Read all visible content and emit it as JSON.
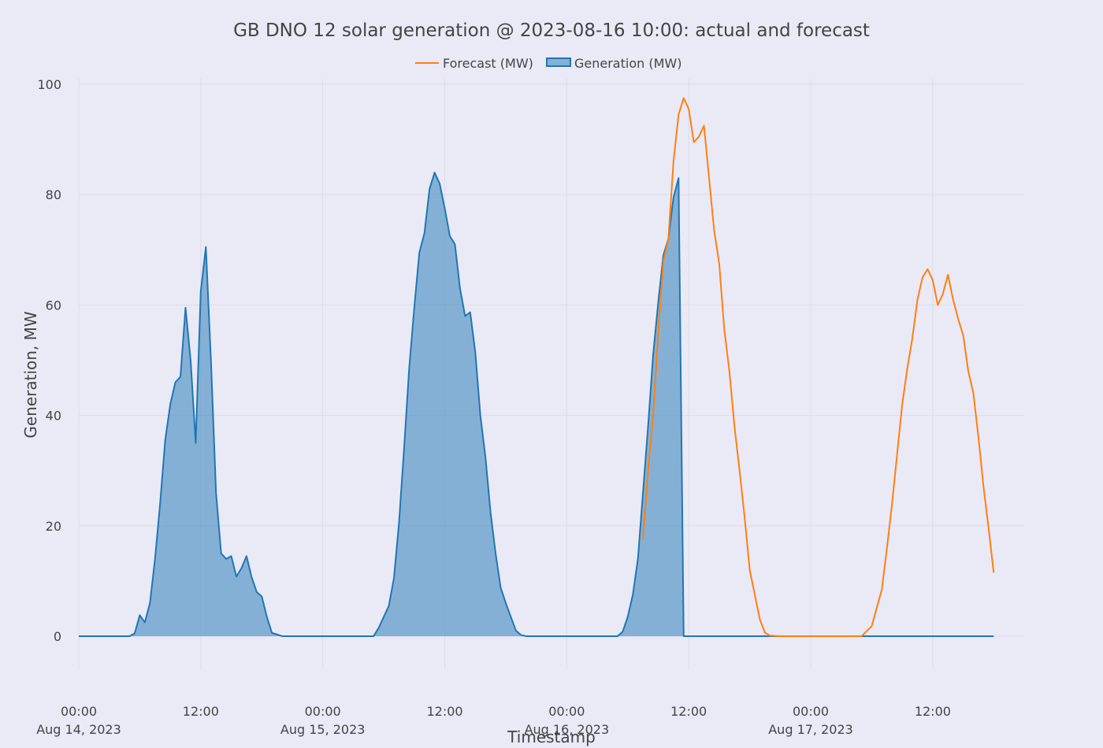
{
  "chart_data": {
    "type": "area",
    "title": "GB DNO 12 solar generation @ 2023-08-16 10:00: actual and forecast",
    "xlabel": "Timestamp",
    "ylabel": "Generation, MW",
    "ylim": [
      -6,
      101
    ],
    "xlim": [
      "2023-08-14T00:00",
      "2023-08-17T21:00"
    ],
    "yticks": [
      0,
      20,
      40,
      60,
      80,
      100
    ],
    "xticks": [
      {
        "t": "2023-08-14T00:00",
        "line1": "00:00",
        "line2": "Aug 14, 2023"
      },
      {
        "t": "2023-08-14T12:00",
        "line1": "12:00",
        "line2": ""
      },
      {
        "t": "2023-08-15T00:00",
        "line1": "00:00",
        "line2": "Aug 15, 2023"
      },
      {
        "t": "2023-08-15T12:00",
        "line1": "12:00",
        "line2": ""
      },
      {
        "t": "2023-08-16T00:00",
        "line1": "00:00",
        "line2": "Aug 16, 2023"
      },
      {
        "t": "2023-08-16T12:00",
        "line1": "12:00",
        "line2": ""
      },
      {
        "t": "2023-08-17T00:00",
        "line1": "00:00",
        "line2": "Aug 17, 2023"
      },
      {
        "t": "2023-08-17T12:00",
        "line1": "12:00",
        "line2": ""
      }
    ],
    "legend_position": "top-center",
    "grid": true,
    "series": [
      {
        "name": "Forecast (MW)",
        "kind": "line",
        "color": "#ff7f0e",
        "points": [
          [
            "2023-08-16T07:30",
            17.5
          ],
          [
            "2023-08-16T08:00",
            30.0
          ],
          [
            "2023-08-16T08:30",
            40.0
          ],
          [
            "2023-08-16T09:00",
            55.0
          ],
          [
            "2023-08-16T09:30",
            68.0
          ],
          [
            "2023-08-16T10:00",
            72.0
          ],
          [
            "2023-08-16T10:30",
            86.0
          ],
          [
            "2023-08-16T11:00",
            94.5
          ],
          [
            "2023-08-16T11:30",
            97.5
          ],
          [
            "2023-08-16T12:00",
            95.5
          ],
          [
            "2023-08-16T12:30",
            89.5
          ],
          [
            "2023-08-16T13:00",
            90.5
          ],
          [
            "2023-08-16T13:30",
            92.5
          ],
          [
            "2023-08-16T14:00",
            83.0
          ],
          [
            "2023-08-16T14:30",
            73.5
          ],
          [
            "2023-08-16T15:00",
            67.5
          ],
          [
            "2023-08-16T15:30",
            55.5
          ],
          [
            "2023-08-16T16:00",
            48.0
          ],
          [
            "2023-08-16T16:30",
            38.0
          ],
          [
            "2023-08-16T17:00",
            30.0
          ],
          [
            "2023-08-16T17:30",
            21.5
          ],
          [
            "2023-08-16T18:00",
            12.0
          ],
          [
            "2023-08-16T18:30",
            7.5
          ],
          [
            "2023-08-16T19:00",
            3.0
          ],
          [
            "2023-08-16T19:30",
            0.6
          ],
          [
            "2023-08-16T20:00",
            0.1
          ],
          [
            "2023-08-16T21:00",
            0.0
          ],
          [
            "2023-08-17T04:00",
            0.0
          ],
          [
            "2023-08-17T05:00",
            0.0
          ],
          [
            "2023-08-17T06:00",
            1.8
          ],
          [
            "2023-08-17T07:00",
            8.5
          ],
          [
            "2023-08-17T07:30",
            16.0
          ],
          [
            "2023-08-17T08:00",
            24.0
          ],
          [
            "2023-08-17T08:30",
            33.0
          ],
          [
            "2023-08-17T09:00",
            42.0
          ],
          [
            "2023-08-17T09:30",
            48.5
          ],
          [
            "2023-08-17T10:00",
            54.0
          ],
          [
            "2023-08-17T10:30",
            61.0
          ],
          [
            "2023-08-17T11:00",
            65.0
          ],
          [
            "2023-08-17T11:30",
            66.5
          ],
          [
            "2023-08-17T12:00",
            64.5
          ],
          [
            "2023-08-17T12:30",
            60.0
          ],
          [
            "2023-08-17T13:00",
            62.0
          ],
          [
            "2023-08-17T13:30",
            65.5
          ],
          [
            "2023-08-17T14:00",
            61.0
          ],
          [
            "2023-08-17T14:30",
            57.5
          ],
          [
            "2023-08-17T15:00",
            54.5
          ],
          [
            "2023-08-17T15:30",
            48.0
          ],
          [
            "2023-08-17T16:00",
            44.0
          ],
          [
            "2023-08-17T16:30",
            36.0
          ],
          [
            "2023-08-17T17:00",
            27.0
          ],
          [
            "2023-08-17T17:30",
            19.5
          ],
          [
            "2023-08-17T18:00",
            11.5
          ]
        ]
      },
      {
        "name": "Generation (MW)",
        "kind": "area",
        "color": "#1f77b4",
        "fill": "rgba(31,119,180,0.5)",
        "points": [
          [
            "2023-08-14T00:00",
            0
          ],
          [
            "2023-08-14T05:00",
            0
          ],
          [
            "2023-08-14T05:30",
            0.5
          ],
          [
            "2023-08-14T06:00",
            3.8
          ],
          [
            "2023-08-14T06:30",
            2.5
          ],
          [
            "2023-08-14T07:00",
            6.0
          ],
          [
            "2023-08-14T07:30",
            14.0
          ],
          [
            "2023-08-14T08:00",
            24.0
          ],
          [
            "2023-08-14T08:30",
            35.5
          ],
          [
            "2023-08-14T09:00",
            42.0
          ],
          [
            "2023-08-14T09:30",
            46.0
          ],
          [
            "2023-08-14T10:00",
            47.0
          ],
          [
            "2023-08-14T10:30",
            59.5
          ],
          [
            "2023-08-14T11:00",
            50.0
          ],
          [
            "2023-08-14T11:30",
            35.0
          ],
          [
            "2023-08-14T12:00",
            62.5
          ],
          [
            "2023-08-14T12:30",
            70.5
          ],
          [
            "2023-08-14T13:00",
            50.0
          ],
          [
            "2023-08-14T13:30",
            26.0
          ],
          [
            "2023-08-14T14:00",
            15.0
          ],
          [
            "2023-08-14T14:30",
            14.0
          ],
          [
            "2023-08-14T15:00",
            14.5
          ],
          [
            "2023-08-14T15:30",
            10.8
          ],
          [
            "2023-08-14T16:00",
            12.3
          ],
          [
            "2023-08-14T16:30",
            14.5
          ],
          [
            "2023-08-14T17:00",
            10.7
          ],
          [
            "2023-08-14T17:30",
            8.0
          ],
          [
            "2023-08-14T18:00",
            7.2
          ],
          [
            "2023-08-14T18:30",
            3.5
          ],
          [
            "2023-08-14T19:00",
            0.6
          ],
          [
            "2023-08-14T20:00",
            0.0
          ],
          [
            "2023-08-15T05:00",
            0.0
          ],
          [
            "2023-08-15T05:30",
            1.5
          ],
          [
            "2023-08-15T06:00",
            3.5
          ],
          [
            "2023-08-15T06:30",
            5.5
          ],
          [
            "2023-08-15T07:00",
            10.5
          ],
          [
            "2023-08-15T07:30",
            20.5
          ],
          [
            "2023-08-15T08:00",
            34.0
          ],
          [
            "2023-08-15T08:30",
            48.5
          ],
          [
            "2023-08-15T09:00",
            59.5
          ],
          [
            "2023-08-15T09:30",
            69.5
          ],
          [
            "2023-08-15T10:00",
            73.0
          ],
          [
            "2023-08-15T10:30",
            81.0
          ],
          [
            "2023-08-15T11:00",
            84.0
          ],
          [
            "2023-08-15T11:30",
            82.0
          ],
          [
            "2023-08-15T12:00",
            77.5
          ],
          [
            "2023-08-15T12:30",
            72.5
          ],
          [
            "2023-08-15T13:00",
            71.0
          ],
          [
            "2023-08-15T13:30",
            63.0
          ],
          [
            "2023-08-15T14:00",
            58.0
          ],
          [
            "2023-08-15T14:30",
            58.7
          ],
          [
            "2023-08-15T15:00",
            51.5
          ],
          [
            "2023-08-15T15:30",
            40.0
          ],
          [
            "2023-08-15T16:00",
            32.5
          ],
          [
            "2023-08-15T16:30",
            22.5
          ],
          [
            "2023-08-15T17:00",
            15.0
          ],
          [
            "2023-08-15T17:30",
            8.8
          ],
          [
            "2023-08-15T18:00",
            6.0
          ],
          [
            "2023-08-15T18:30",
            3.5
          ],
          [
            "2023-08-15T19:00",
            1.0
          ],
          [
            "2023-08-15T19:30",
            0.2
          ],
          [
            "2023-08-15T20:00",
            0.0
          ],
          [
            "2023-08-16T05:00",
            0.0
          ],
          [
            "2023-08-16T05:30",
            0.8
          ],
          [
            "2023-08-16T06:00",
            3.5
          ],
          [
            "2023-08-16T06:30",
            7.5
          ],
          [
            "2023-08-16T07:00",
            14.0
          ],
          [
            "2023-08-16T07:30",
            26.0
          ],
          [
            "2023-08-16T08:00",
            38.0
          ],
          [
            "2023-08-16T08:30",
            51.0
          ],
          [
            "2023-08-16T09:00",
            60.5
          ],
          [
            "2023-08-16T09:30",
            69.0
          ],
          [
            "2023-08-16T10:00",
            72.0
          ],
          [
            "2023-08-16T10:30",
            79.5
          ],
          [
            "2023-08-16T11:00",
            83.0
          ],
          [
            "2023-08-16T11:30",
            0.0
          ],
          [
            "2023-08-17T18:00",
            0.0
          ]
        ]
      }
    ]
  }
}
